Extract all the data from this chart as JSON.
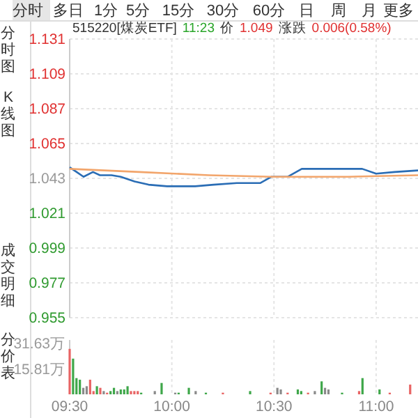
{
  "chart_data": [
    {
      "type": "line",
      "annotations": [
        "分时",
        "多日",
        "1分",
        "5分",
        "15分",
        "30分",
        "60分",
        "日",
        "周",
        "月",
        "更多",
        "分时图",
        "K线图",
        "成交明细",
        "分价表",
        "515220[煤炭ETF]",
        "11:23",
        "价",
        "1.049",
        "涨跌",
        "0.006(0.58%)"
      ],
      "xlim": [
        9.5,
        11.205
      ],
      "ylim": [
        0.955,
        1.131
      ],
      "yticks": [
        {
          "value": 1.131,
          "label": "1.131"
        },
        {
          "value": 1.109,
          "label": "1.109"
        },
        {
          "value": 1.087,
          "label": "1.087"
        },
        {
          "value": 1.065,
          "label": "1.065"
        },
        {
          "value": 1.043,
          "label": "1.043"
        },
        {
          "value": 1.021,
          "label": "1.021"
        },
        {
          "value": 0.999,
          "label": "0.999"
        },
        {
          "value": 0.977,
          "label": "0.977"
        },
        {
          "value": 0.955,
          "label": "0.955"
        }
      ],
      "xticks": [
        {
          "value": 9.5,
          "label": null
        },
        {
          "value": 10,
          "label": null
        },
        {
          "value": 10.5,
          "label": null
        },
        {
          "value": 11,
          "label": null
        }
      ],
      "tick_labels": "y",
      "grid": true,
      "series": [
        {
          "color": "#2a6db5",
          "x": [
            9.5,
            9.534,
            9.568,
            9.614,
            9.648,
            9.705,
            9.75,
            9.818,
            9.886,
            9.977,
            10.114,
            10.204,
            10.318,
            10.432,
            10.488,
            10.568,
            10.636,
            10.727,
            10.818,
            10.932,
            11.0,
            11.091,
            11.205
          ],
          "values": [
            1.05,
            1.047,
            1.044,
            1.047,
            1.045,
            1.045,
            1.044,
            1.041,
            1.039,
            1.038,
            1.038,
            1.039,
            1.04,
            1.04,
            1.044,
            1.044,
            1.049,
            1.049,
            1.049,
            1.049,
            1.046,
            1.047,
            1.048
          ]
        },
        {
          "color": "#f2a56b",
          "x": [
            9.5,
            9.841,
            10.182,
            10.488,
            10.864,
            11.205
          ],
          "values": [
            1.049,
            1.047,
            1.045,
            1.044,
            1.044,
            1.045
          ]
        }
      ]
    },
    {
      "type": "bar",
      "xlim": [
        9.5,
        11.205
      ],
      "ylim": [
        0,
        33.5
      ],
      "yticks": [
        {
          "value": 15.81,
          "label": "15.81万"
        },
        {
          "value": 31.63,
          "label": "31.63万"
        }
      ],
      "xticks": [
        {
          "value": 9.5,
          "label": "09:30"
        },
        {
          "value": 10,
          "label": "10:00"
        },
        {
          "value": 10.5,
          "label": "10:30"
        },
        {
          "value": 11,
          "label": "11:00"
        }
      ],
      "grid": "x",
      "x": [
        9.5,
        9.5167,
        9.5333,
        9.55,
        9.5667,
        9.5833,
        9.6,
        9.6167,
        9.6333,
        9.65,
        9.6667,
        9.6833,
        9.7,
        9.7167,
        9.7333,
        9.75,
        9.7667,
        9.7833,
        9.8,
        9.8167,
        9.8333,
        9.85,
        9.9167,
        9.95,
        10.0167,
        10.0333,
        10.0833,
        10.1167,
        10.1667,
        10.25,
        10.3833,
        10.4833,
        10.5167,
        10.5333,
        10.5667,
        10.6167,
        10.6333,
        10.6667,
        10.7,
        10.7333,
        10.75,
        10.7667,
        10.8333,
        10.9167,
        10.9333,
        11.0167,
        11.0667,
        11.1667
      ],
      "values": [
        28,
        22,
        10,
        9,
        4,
        5,
        9,
        2,
        5,
        4,
        2,
        1,
        2,
        4,
        2,
        3,
        3,
        5,
        2,
        2,
        2,
        1,
        2,
        7,
        1,
        1,
        4,
        2,
        1,
        1,
        2,
        1,
        4,
        3,
        1,
        3,
        2,
        1,
        2,
        8,
        4,
        3,
        1,
        2,
        10,
        3,
        1,
        6
      ],
      "colors": [
        "#e86464",
        "#3fa74a",
        "#3fa74a",
        "#3fa74a",
        "#8a8a8a",
        "#8a8a8a",
        "#e86464",
        "#e86464",
        "#3fa74a",
        "#e86464",
        "#8a8a8a",
        "#e86464",
        "#3fa74a",
        "#3fa74a",
        "#8a8a8a",
        "#3fa74a",
        "#3fa74a",
        "#3fa74a",
        "#e86464",
        "#e86464",
        "#e86464",
        "#3fa74a",
        "#8a8a8a",
        "#3fa74a",
        "#8a8a8a",
        "#3fa74a",
        "#3fa74a",
        "#8a8a8a",
        "#3fa74a",
        "#e86464",
        "#3fa74a",
        "#e86464",
        "#8a8a8a",
        "#8a8a8a",
        "#e86464",
        "#3fa74a",
        "#3fa74a",
        "#e86464",
        "#8a8a8a",
        "#3fa74a",
        "#8a8a8a",
        "#8a8a8a",
        "#3fa74a",
        "#e86464",
        "#3fa74a",
        "#3fa74a",
        "#e86464",
        "#e86464"
      ]
    }
  ]
}
